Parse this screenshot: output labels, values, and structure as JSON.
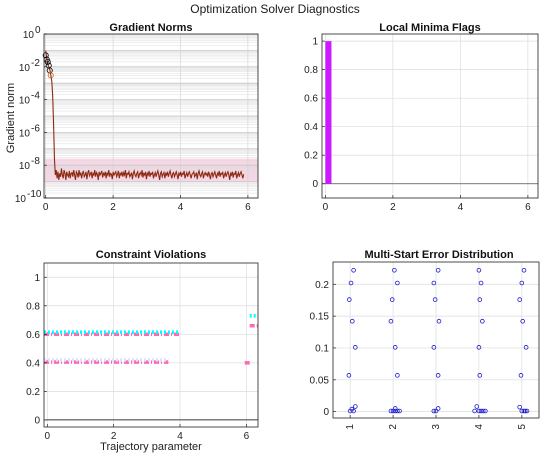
{
  "figure": {
    "suptitle": "Optimization Solver Diagnostics"
  },
  "chart_data": [
    {
      "id": "gradient",
      "type": "line",
      "title": "Gradient Norms",
      "xlabel": "",
      "ylabel": "Gradient norm",
      "yscale": "log",
      "xlim": [
        -0.05,
        6.3
      ],
      "ylim_exponents": [
        -10,
        0
      ],
      "xticks": [
        0,
        2,
        4,
        6
      ],
      "yticks": [
        {
          "v": 1,
          "base": "10",
          "exp": "0"
        },
        {
          "v": 0.01,
          "base": "10",
          "exp": "-2"
        },
        {
          "v": 0.0001,
          "base": "10",
          "exp": "-4"
        },
        {
          "v": 1e-06,
          "base": "10",
          "exp": "-6"
        },
        {
          "v": 1e-08,
          "base": "10",
          "exp": "-8"
        },
        {
          "v": 1e-10,
          "base": "10",
          "exp": "-10"
        }
      ],
      "grid": true,
      "band": {
        "y0": 1e-09,
        "y1": 2.5e-08,
        "color": "#f7d6e6"
      },
      "series": [
        {
          "color": "#8b2a10",
          "x0": 0.0,
          "dx": 0.026,
          "y_log10": [
            -1.02,
            -1.38,
            -1.71,
            -1.95,
            -2.05,
            -2.25,
            -2.55,
            -2.9,
            -3.8,
            -5.5,
            -7.6,
            -8.6,
            -8.3,
            -8.8,
            -8.4,
            -8.9,
            -8.5,
            -8.7,
            -8.2,
            -8.6,
            -8.8,
            -8.3,
            -8.5,
            -8.9,
            -8.4,
            -8.6,
            -8.7,
            -8.35,
            -8.8,
            -8.5,
            -8.45,
            -8.7,
            -8.3,
            -8.6,
            -8.9,
            -8.4,
            -8.5,
            -8.75,
            -8.3,
            -8.6,
            -8.45,
            -8.8,
            -8.5,
            -8.35,
            -8.7,
            -8.6,
            -8.4,
            -8.85,
            -8.5,
            -8.3,
            -8.65,
            -8.55,
            -8.4,
            -8.8,
            -8.5,
            -8.6,
            -8.3,
            -8.7,
            -8.45,
            -8.55,
            -8.9,
            -8.4,
            -8.6,
            -8.5,
            -8.35,
            -8.75,
            -8.5,
            -8.6,
            -8.4,
            -8.8,
            -8.45,
            -8.6,
            -8.3,
            -8.7,
            -8.5,
            -8.55,
            -8.85,
            -8.4,
            -8.6,
            -8.5,
            -8.4,
            -8.7,
            -8.55,
            -8.35,
            -8.8,
            -8.5,
            -8.6,
            -8.4,
            -8.7,
            -8.45,
            -8.6,
            -8.3,
            -8.8,
            -8.5,
            -8.55,
            -8.4,
            -8.7,
            -8.6,
            -8.45,
            -8.85,
            -8.5,
            -8.35,
            -8.6,
            -8.7,
            -8.5,
            -8.4,
            -8.8,
            -8.55,
            -8.45,
            -8.6,
            -8.3,
            -8.75,
            -8.5,
            -8.6,
            -8.4,
            -8.85,
            -8.5,
            -8.6,
            -8.35,
            -8.7,
            -8.5,
            -8.55,
            -8.4,
            -8.8,
            -8.6,
            -8.45,
            -8.7,
            -8.5,
            -8.35,
            -8.6,
            -8.9,
            -8.5,
            -8.4,
            -8.7,
            -8.55,
            -8.45,
            -8.8,
            -8.5,
            -8.6,
            -8.4,
            -8.7,
            -8.5,
            -8.35,
            -8.6,
            -8.8,
            -8.5,
            -8.45,
            -8.7,
            -8.55,
            -8.4,
            -8.6,
            -8.85,
            -8.5,
            -8.6,
            -8.4,
            -8.7,
            -8.5,
            -8.55,
            -8.35,
            -8.8,
            -8.6,
            -8.45,
            -8.7,
            -8.5,
            -8.4,
            -8.6,
            -8.8,
            -8.55,
            -8.5,
            -8.4,
            -8.7,
            -8.6,
            -8.45,
            -8.85,
            -8.5,
            -8.35,
            -8.6,
            -8.7,
            -8.5,
            -8.4,
            -8.8,
            -8.55,
            -8.45,
            -8.6,
            -8.5,
            -8.7,
            -8.4,
            -8.6,
            -8.85,
            -8.5,
            -8.45,
            -8.7,
            -8.55,
            -8.4,
            -8.6,
            -8.8,
            -8.5,
            -8.6,
            -8.35,
            -8.7,
            -8.5,
            -8.55,
            -8.4,
            -8.8,
            -8.6,
            -8.45,
            -8.7,
            -8.5,
            -8.4,
            -8.6,
            -8.9,
            -8.5,
            -8.6,
            -8.4,
            -8.75,
            -8.5,
            -8.55,
            -8.35,
            -8.8,
            -8.6,
            -8.45,
            -8.7,
            -8.5,
            -8.4,
            -8.6,
            -8.8,
            -8.55
          ]
        }
      ],
      "markers": [
        {
          "x": 0.0,
          "y": 0.05,
          "color": "#000000",
          "shape": "circle"
        },
        {
          "x": 0.03,
          "y": 0.028,
          "color": "#000000",
          "shape": "circle"
        },
        {
          "x": 0.06,
          "y": 0.02,
          "color": "#000000",
          "shape": "circle"
        },
        {
          "x": 0.09,
          "y": 0.012,
          "color": "#000000",
          "shape": "circle"
        },
        {
          "x": 0.12,
          "y": 0.006,
          "color": "#000000",
          "shape": "circle"
        },
        {
          "x": 0.15,
          "y": 0.003,
          "color": "#d2691e",
          "shape": "circle"
        }
      ]
    },
    {
      "id": "minima",
      "type": "bar",
      "title": "Local Minima Flags",
      "xlim": [
        -0.1,
        6.3
      ],
      "ylim": [
        -0.1,
        1.05
      ],
      "xticks": [
        0,
        2,
        4,
        6
      ],
      "yticks": [
        0,
        0.2,
        0.4,
        0.6,
        0.8,
        1
      ],
      "grid": true,
      "bars": [
        {
          "x0": 0.0,
          "x1": 0.18,
          "value": 1,
          "color": "#cc19ff"
        }
      ]
    },
    {
      "id": "constraint",
      "type": "line",
      "title": "Constraint Violations",
      "xlabel": "Trajectory parameter",
      "xlim": [
        -0.1,
        6.35
      ],
      "ylim": [
        -0.05,
        1.1
      ],
      "xticks": [
        0,
        2,
        4,
        6
      ],
      "yticks": [
        0,
        0.2,
        0.4,
        0.6,
        0.8,
        1
      ],
      "grid": true,
      "zero_line_color": "#000000",
      "segments": [
        {
          "x0": -0.1,
          "x1": 4.0,
          "y": 0.6,
          "color": "#ff69b4",
          "style": "dashed"
        },
        {
          "x0": -0.1,
          "x1": 4.0,
          "y": 0.615,
          "color": "#00ffff",
          "style": "dotted"
        },
        {
          "x0": -0.1,
          "x1": 3.65,
          "y": 0.405,
          "color": "#ff69b4",
          "style": "dashed"
        },
        {
          "x0": -0.1,
          "x1": 3.65,
          "y": 0.42,
          "color": "#e0e0ff",
          "style": "dotted"
        },
        {
          "x0": 5.95,
          "x1": 6.1,
          "y": 0.4,
          "color": "#ff69b4",
          "style": "dashed"
        },
        {
          "x0": 6.1,
          "x1": 6.35,
          "y": 0.66,
          "color": "#ff69b4",
          "style": "dashed"
        },
        {
          "x0": 6.1,
          "x1": 6.35,
          "y": 0.73,
          "color": "#00ffff",
          "style": "dotted"
        }
      ]
    },
    {
      "id": "multistart",
      "type": "scatter",
      "title": "Multi-Start Error Distribution",
      "xlim": [
        0.6,
        5.4
      ],
      "ylim": [
        -0.01,
        0.235
      ],
      "xticks": [
        1,
        2,
        3,
        4,
        5
      ],
      "yticks": [
        0,
        0.05,
        0.1,
        0.15,
        0.2
      ],
      "grid": true,
      "color": "#1f1fcc",
      "points": [
        [
          1.08,
          0.222
        ],
        [
          1.02,
          0.202
        ],
        [
          0.98,
          0.176
        ],
        [
          1.05,
          0.142
        ],
        [
          1.12,
          0.101
        ],
        [
          0.97,
          0.057
        ],
        [
          1.12,
          0.008
        ],
        [
          1.04,
          0.004
        ],
        [
          1.0,
          0.001
        ],
        [
          1.08,
          0.001
        ],
        [
          2.03,
          0.222
        ],
        [
          2.1,
          0.202
        ],
        [
          1.98,
          0.176
        ],
        [
          1.95,
          0.142
        ],
        [
          2.05,
          0.101
        ],
        [
          2.1,
          0.057
        ],
        [
          1.95,
          0.001
        ],
        [
          2.0,
          0.001
        ],
        [
          2.05,
          0.001
        ],
        [
          2.1,
          0.001
        ],
        [
          2.15,
          0.001
        ],
        [
          2.05,
          0.005
        ],
        [
          3.05,
          0.222
        ],
        [
          2.95,
          0.202
        ],
        [
          2.98,
          0.176
        ],
        [
          3.07,
          0.142
        ],
        [
          2.95,
          0.101
        ],
        [
          3.05,
          0.057
        ],
        [
          2.95,
          0.001
        ],
        [
          3.0,
          0.001
        ],
        [
          3.05,
          0.005
        ],
        [
          4.0,
          0.222
        ],
        [
          4.05,
          0.202
        ],
        [
          4.02,
          0.176
        ],
        [
          4.08,
          0.142
        ],
        [
          4.0,
          0.101
        ],
        [
          4.02,
          0.057
        ],
        [
          3.95,
          0.008
        ],
        [
          3.9,
          0.001
        ],
        [
          4.0,
          0.001
        ],
        [
          4.05,
          0.001
        ],
        [
          4.1,
          0.001
        ],
        [
          4.15,
          0.001
        ],
        [
          5.05,
          0.222
        ],
        [
          5.0,
          0.202
        ],
        [
          4.95,
          0.176
        ],
        [
          5.02,
          0.142
        ],
        [
          5.1,
          0.101
        ],
        [
          4.98,
          0.057
        ],
        [
          4.95,
          0.007
        ],
        [
          5.0,
          0.001
        ],
        [
          5.05,
          0.001
        ],
        [
          5.08,
          0.001
        ],
        [
          5.12,
          0.001
        ]
      ],
      "xtick_rotation": -90
    }
  ]
}
